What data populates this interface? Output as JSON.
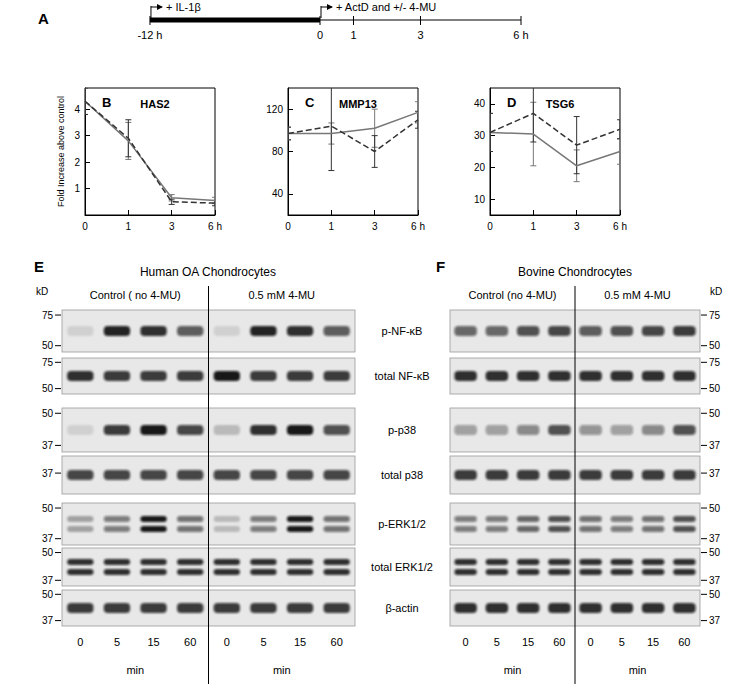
{
  "chart_data": [
    {
      "type": "line",
      "title": "HAS2",
      "annotations": [
        "B"
      ],
      "ylabel": "Fold Increase above control",
      "categories": [
        "0",
        "1",
        "3",
        "6 h"
      ],
      "ylim": [
        0,
        4.8
      ],
      "yticks": [
        1,
        2,
        3,
        4
      ],
      "series": [
        {
          "color": "#777777",
          "line_style": "solid",
          "values": [
            4.3,
            2.8,
            0.65,
            0.55
          ],
          "errors": [
            0.5,
            0.7,
            0.12,
            0.12
          ]
        },
        {
          "color": "#333333",
          "line_style": "dashed",
          "values": [
            4.3,
            2.9,
            0.5,
            0.45
          ],
          "errors": [
            0.5,
            0.7,
            0.1,
            0.1
          ]
        }
      ]
    },
    {
      "type": "line",
      "title": "MMP13",
      "annotations": [
        "C"
      ],
      "categories": [
        "0",
        "1",
        "3",
        "6 h"
      ],
      "ylim": [
        20,
        140
      ],
      "yticks": [
        40,
        80,
        120
      ],
      "series": [
        {
          "color": "#777777",
          "line_style": "solid",
          "values": [
            97,
            97,
            102,
            117
          ],
          "errors": [
            6,
            10,
            18,
            10
          ]
        },
        {
          "color": "#333333",
          "line_style": "dashed",
          "values": [
            97,
            104,
            80,
            110
          ],
          "errors": [
            6,
            42,
            15,
            8
          ]
        }
      ]
    },
    {
      "type": "line",
      "title": "TSG6",
      "annotations": [
        "D"
      ],
      "categories": [
        "0",
        "1",
        "3",
        "6 h"
      ],
      "ylim": [
        5,
        45
      ],
      "yticks": [
        10,
        20,
        30,
        40
      ],
      "series": [
        {
          "color": "#777777",
          "line_style": "solid",
          "values": [
            31,
            30.5,
            20.5,
            25
          ],
          "errors": [
            6,
            10,
            5,
            4
          ]
        },
        {
          "color": "#333333",
          "line_style": "dashed",
          "values": [
            31,
            37,
            27,
            32
          ],
          "errors": [
            6,
            9,
            9,
            3
          ]
        }
      ]
    }
  ],
  "timeline": {
    "label": "A",
    "phases": [
      {
        "text": "+ IL-1β",
        "start": -12,
        "end": 0,
        "line_style": "thick"
      },
      {
        "text": "+ ActD  and  +/- 4-MU",
        "start": 0,
        "end": 6,
        "line_style": "thin"
      }
    ],
    "ticks": [
      {
        "value": -12,
        "label": "-12 h"
      },
      0,
      1,
      3,
      {
        "value": 6,
        "label": "6 h"
      }
    ]
  },
  "blots": {
    "rows": [
      {
        "name": "p-NF-κB",
        "doublet": false
      },
      {
        "name": "total NF-κB",
        "doublet": false
      },
      {
        "name": "p-p38",
        "doublet": false
      },
      {
        "name": "total p38",
        "doublet": false
      },
      {
        "name": "p-ERK1/2",
        "doublet": true
      },
      {
        "name": "total ERK1/2",
        "doublet": true
      },
      {
        "name": "β-actin",
        "doublet": false
      }
    ],
    "panels": [
      {
        "label": "E",
        "title": "Human OA Chondrocytes",
        "groups": [
          "Control ( no 4-MU)",
          "0.5 mM 4-MU"
        ],
        "lanes": [
          "0",
          "5",
          "15",
          "60"
        ],
        "lane_unit": "min",
        "unit": "kD",
        "marker_side": "left",
        "markers": [
          [
            75,
            50
          ],
          [
            75,
            50
          ],
          [
            50,
            37
          ],
          [
            37
          ],
          [
            50,
            37
          ],
          [
            50,
            37
          ],
          [
            50,
            37
          ]
        ],
        "intensities": [
          [
            0.1,
            0.9,
            0.85,
            0.65,
            0.1,
            0.9,
            0.85,
            0.65
          ],
          [
            0.85,
            0.8,
            0.8,
            0.8,
            0.95,
            0.8,
            0.8,
            0.8
          ],
          [
            0.1,
            0.8,
            0.95,
            0.75,
            0.2,
            0.85,
            0.95,
            0.7
          ],
          [
            0.75,
            0.75,
            0.75,
            0.75,
            0.75,
            0.75,
            0.75,
            0.75
          ],
          [
            0.3,
            0.5,
            0.95,
            0.55,
            0.2,
            0.5,
            0.95,
            0.55
          ],
          [
            0.85,
            0.85,
            0.85,
            0.85,
            0.85,
            0.85,
            0.85,
            0.85
          ],
          [
            0.8,
            0.8,
            0.8,
            0.8,
            0.8,
            0.8,
            0.8,
            0.8
          ]
        ]
      },
      {
        "label": "F",
        "title": "Bovine Chondrocytes",
        "groups": [
          "Control (no 4-MU)",
          "0.5 mM 4-MU"
        ],
        "lanes": [
          "0",
          "5",
          "15",
          "60"
        ],
        "lane_unit": "min",
        "unit": "kD",
        "marker_side": "right",
        "markers": [
          [
            75,
            50
          ],
          [
            75,
            50
          ],
          [
            50,
            37
          ],
          [
            37
          ],
          [
            50,
            37
          ],
          [
            50,
            37
          ],
          [
            50,
            37
          ]
        ],
        "intensities": [
          [
            0.6,
            0.6,
            0.7,
            0.75,
            0.65,
            0.7,
            0.75,
            0.8
          ],
          [
            0.85,
            0.85,
            0.85,
            0.85,
            0.85,
            0.85,
            0.85,
            0.85
          ],
          [
            0.35,
            0.35,
            0.45,
            0.7,
            0.4,
            0.35,
            0.45,
            0.7
          ],
          [
            0.8,
            0.8,
            0.8,
            0.8,
            0.8,
            0.8,
            0.8,
            0.8
          ],
          [
            0.5,
            0.5,
            0.6,
            0.7,
            0.55,
            0.5,
            0.55,
            0.7
          ],
          [
            0.85,
            0.85,
            0.85,
            0.85,
            0.85,
            0.85,
            0.85,
            0.85
          ],
          [
            0.85,
            0.85,
            0.85,
            0.85,
            0.85,
            0.85,
            0.85,
            0.85
          ]
        ]
      }
    ]
  }
}
